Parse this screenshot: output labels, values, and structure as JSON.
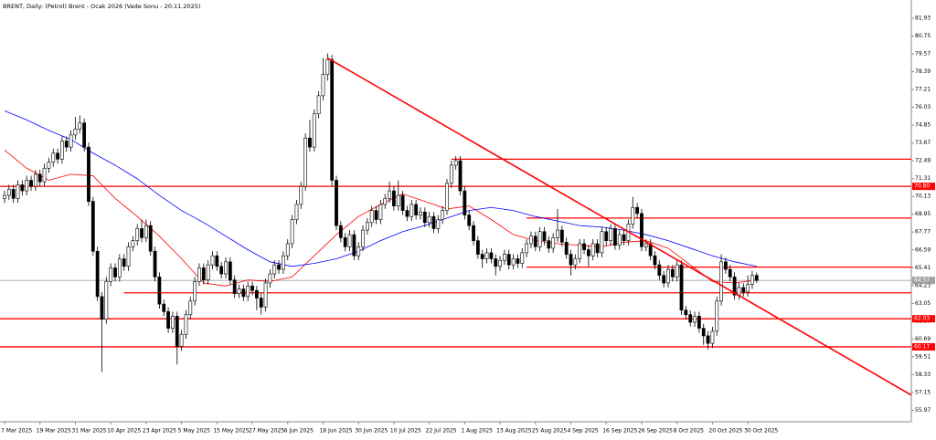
{
  "chart_data": {
    "type": "candlestick",
    "title": "BRENT, Daily:  (Petrol) Brent - Ocak 2026 (Vade Sonu - 20.11.2025)",
    "categories": [
      "7 Mar 2025",
      null,
      null,
      null,
      null,
      null,
      null,
      null,
      "19 Mar 2025",
      null,
      null,
      null,
      null,
      null,
      null,
      null,
      "31 Mar 2025",
      null,
      null,
      null,
      null,
      null,
      null,
      null,
      "10 Apr 2025",
      null,
      null,
      null,
      null,
      null,
      null,
      null,
      "23 Apr 2025",
      null,
      null,
      null,
      null,
      null,
      null,
      null,
      "5 May 2025",
      null,
      null,
      null,
      null,
      null,
      null,
      null,
      "15 May 2025",
      null,
      null,
      null,
      null,
      null,
      null,
      null,
      "27 May 2025",
      null,
      null,
      null,
      null,
      null,
      null,
      null,
      "6 Jun 2025",
      null,
      null,
      null,
      null,
      null,
      null,
      null,
      "18 Jun 2025",
      null,
      null,
      null,
      null,
      null,
      null,
      null,
      "30 Jun 2025",
      null,
      null,
      null,
      null,
      null,
      null,
      null,
      "10 Jul 2025",
      null,
      null,
      null,
      null,
      null,
      null,
      null,
      "22 Jul 2025",
      null,
      null,
      null,
      null,
      null,
      null,
      null,
      "1 Aug 2025",
      null,
      null,
      null,
      null,
      null,
      null,
      null,
      "13 Aug 2025",
      null,
      null,
      null,
      null,
      null,
      null,
      null,
      "25 Aug 2025",
      null,
      null,
      null,
      null,
      null,
      null,
      null,
      "4 Sep 2025",
      null,
      null,
      null,
      null,
      null,
      null,
      null,
      "16 Sep 2025",
      null,
      null,
      null,
      null,
      null,
      null,
      null,
      "26 Sep 2025",
      null,
      null,
      null,
      null,
      null,
      null,
      null,
      "8 Oct 2025",
      null,
      null,
      null,
      null,
      null,
      null,
      null,
      "20 Oct 2025",
      null,
      null,
      null,
      null,
      null,
      null,
      null,
      "30 Oct 2025",
      null,
      null
    ],
    "ohlc": [
      [
        70.0,
        70.5,
        69.7,
        70.2
      ],
      [
        70.2,
        70.9,
        69.9,
        70.6
      ],
      [
        70.6,
        70.9,
        69.7,
        70.0
      ],
      [
        70.0,
        71.2,
        69.7,
        70.9
      ],
      [
        70.9,
        71.2,
        70.2,
        70.5
      ],
      [
        70.5,
        71.5,
        70.2,
        71.2
      ],
      [
        71.2,
        71.5,
        70.5,
        70.8
      ],
      [
        70.8,
        71.9,
        70.5,
        71.6
      ],
      [
        71.6,
        71.9,
        70.8,
        71.1
      ],
      [
        71.1,
        72.3,
        70.8,
        72.0
      ],
      [
        72.0,
        72.7,
        71.7,
        72.4
      ],
      [
        72.4,
        73.3,
        72.1,
        73.0
      ],
      [
        73.0,
        73.3,
        72.3,
        72.6
      ],
      [
        72.6,
        74.1,
        72.3,
        73.8
      ],
      [
        73.8,
        74.1,
        73.1,
        73.4
      ],
      [
        73.4,
        74.5,
        73.1,
        74.2
      ],
      [
        74.2,
        75.4,
        73.9,
        74.6
      ],
      [
        74.6,
        75.5,
        74.3,
        75.0
      ],
      [
        75.0,
        75.3,
        73.1,
        73.4
      ],
      [
        73.4,
        73.7,
        69.5,
        69.8
      ],
      [
        69.8,
        70.1,
        66.2,
        66.5
      ],
      [
        66.5,
        66.8,
        63.2,
        63.5
      ],
      [
        63.5,
        63.8,
        58.5,
        62.0
      ],
      [
        62.0,
        64.8,
        61.7,
        64.5
      ],
      [
        64.5,
        65.7,
        64.2,
        65.4
      ],
      [
        65.4,
        65.7,
        64.5,
        64.8
      ],
      [
        64.8,
        66.3,
        64.5,
        66.0
      ],
      [
        66.0,
        66.3,
        65.2,
        65.5
      ],
      [
        65.5,
        67.1,
        65.2,
        66.8
      ],
      [
        66.8,
        67.5,
        66.5,
        67.2
      ],
      [
        67.2,
        68.3,
        66.9,
        68.0
      ],
      [
        68.0,
        68.6,
        67.1,
        67.4
      ],
      [
        67.4,
        68.6,
        67.1,
        68.2
      ],
      [
        68.2,
        68.5,
        66.2,
        66.5
      ],
      [
        66.5,
        66.8,
        64.5,
        64.8
      ],
      [
        64.8,
        65.1,
        62.7,
        63.0
      ],
      [
        63.0,
        63.3,
        62.2,
        62.5
      ],
      [
        62.5,
        62.8,
        61.1,
        61.4
      ],
      [
        61.4,
        62.5,
        61.1,
        62.2
      ],
      [
        62.2,
        62.5,
        59.0,
        60.2
      ],
      [
        60.2,
        61.3,
        59.9,
        61.0
      ],
      [
        61.0,
        62.6,
        60.7,
        62.3
      ],
      [
        62.3,
        63.5,
        62.0,
        63.2
      ],
      [
        63.2,
        64.8,
        62.9,
        64.5
      ],
      [
        64.5,
        65.7,
        64.2,
        65.4
      ],
      [
        65.4,
        65.7,
        64.3,
        64.6
      ],
      [
        64.6,
        65.9,
        64.3,
        65.6
      ],
      [
        65.6,
        66.5,
        65.3,
        66.2
      ],
      [
        66.2,
        66.5,
        65.2,
        65.5
      ],
      [
        65.5,
        65.8,
        64.7,
        65.0
      ],
      [
        65.0,
        66.1,
        64.7,
        65.8
      ],
      [
        65.8,
        66.1,
        64.3,
        64.6
      ],
      [
        64.6,
        64.9,
        63.4,
        63.7
      ],
      [
        63.7,
        64.3,
        63.4,
        64.0
      ],
      [
        64.0,
        64.3,
        63.2,
        63.5
      ],
      [
        63.5,
        64.5,
        63.2,
        64.2
      ],
      [
        64.2,
        64.5,
        63.6,
        63.9
      ],
      [
        63.9,
        64.2,
        62.6,
        63.4
      ],
      [
        63.4,
        63.7,
        62.3,
        62.8
      ],
      [
        62.8,
        64.7,
        62.5,
        64.4
      ],
      [
        64.4,
        65.3,
        64.1,
        65.0
      ],
      [
        65.0,
        65.9,
        64.7,
        65.6
      ],
      [
        65.6,
        65.9,
        65.0,
        65.3
      ],
      [
        65.3,
        66.5,
        65.0,
        66.2
      ],
      [
        66.2,
        67.3,
        65.9,
        67.0
      ],
      [
        67.0,
        68.9,
        66.7,
        68.6
      ],
      [
        68.6,
        69.9,
        68.3,
        69.6
      ],
      [
        69.6,
        71.1,
        69.3,
        70.8
      ],
      [
        70.8,
        74.3,
        70.5,
        74.0
      ],
      [
        74.0,
        75.2,
        73.1,
        73.4
      ],
      [
        73.4,
        75.9,
        73.1,
        75.6
      ],
      [
        75.6,
        77.1,
        75.3,
        76.8
      ],
      [
        76.8,
        79.3,
        76.5,
        78.2
      ],
      [
        78.2,
        79.6,
        77.8,
        79.2
      ],
      [
        79.2,
        79.5,
        70.8,
        71.2
      ],
      [
        71.2,
        71.5,
        67.9,
        68.2
      ],
      [
        68.2,
        68.5,
        67.1,
        67.4
      ],
      [
        67.4,
        67.7,
        66.5,
        66.8
      ],
      [
        66.8,
        67.9,
        66.5,
        67.6
      ],
      [
        67.6,
        67.9,
        65.9,
        66.2
      ],
      [
        66.2,
        67.1,
        65.9,
        66.8
      ],
      [
        66.8,
        68.2,
        66.5,
        67.9
      ],
      [
        67.9,
        68.7,
        67.6,
        68.4
      ],
      [
        68.4,
        69.5,
        68.1,
        69.2
      ],
      [
        69.2,
        69.5,
        68.3,
        68.6
      ],
      [
        68.6,
        69.9,
        68.3,
        69.6
      ],
      [
        69.6,
        70.3,
        69.3,
        70.0
      ],
      [
        70.0,
        71.1,
        69.7,
        70.5
      ],
      [
        70.5,
        70.8,
        69.2,
        69.5
      ],
      [
        69.5,
        71.2,
        69.2,
        70.2
      ],
      [
        70.2,
        70.5,
        68.9,
        69.2
      ],
      [
        69.2,
        69.5,
        68.5,
        68.8
      ],
      [
        68.8,
        69.9,
        68.5,
        69.6
      ],
      [
        69.6,
        69.9,
        68.6,
        68.9
      ],
      [
        68.9,
        69.4,
        68.6,
        69.1
      ],
      [
        69.1,
        69.4,
        68.1,
        68.4
      ],
      [
        68.4,
        69.1,
        68.1,
        68.8
      ],
      [
        68.8,
        69.1,
        67.7,
        68.0
      ],
      [
        68.0,
        68.9,
        67.7,
        68.6
      ],
      [
        68.6,
        69.5,
        68.3,
        69.2
      ],
      [
        69.2,
        71.3,
        68.9,
        71.0
      ],
      [
        71.0,
        72.5,
        70.7,
        72.2
      ],
      [
        72.2,
        72.8,
        71.9,
        72.5
      ],
      [
        72.5,
        72.8,
        70.2,
        70.5
      ],
      [
        70.5,
        70.8,
        68.6,
        68.9
      ],
      [
        68.9,
        69.2,
        67.9,
        68.2
      ],
      [
        68.2,
        68.5,
        66.9,
        67.2
      ],
      [
        67.2,
        67.5,
        66.0,
        66.3
      ],
      [
        66.3,
        66.6,
        65.4,
        66.0
      ],
      [
        66.0,
        66.7,
        65.7,
        66.4
      ],
      [
        66.4,
        66.7,
        65.7,
        66.0
      ],
      [
        66.0,
        66.3,
        64.9,
        65.5
      ],
      [
        65.5,
        66.2,
        65.2,
        65.9
      ],
      [
        65.9,
        66.6,
        65.6,
        66.3
      ],
      [
        66.3,
        66.6,
        65.3,
        65.6
      ],
      [
        65.6,
        66.3,
        65.3,
        66.0
      ],
      [
        66.0,
        66.3,
        65.4,
        65.7
      ],
      [
        65.7,
        66.7,
        65.4,
        66.4
      ],
      [
        66.4,
        67.3,
        66.1,
        67.0
      ],
      [
        67.0,
        67.8,
        66.7,
        67.5
      ],
      [
        67.5,
        67.8,
        66.5,
        66.8
      ],
      [
        66.8,
        68.1,
        66.5,
        67.8
      ],
      [
        67.8,
        68.1,
        66.9,
        67.2
      ],
      [
        67.2,
        67.5,
        66.4,
        66.7
      ],
      [
        66.7,
        67.7,
        66.4,
        67.4
      ],
      [
        67.4,
        69.3,
        67.1,
        67.9
      ],
      [
        67.9,
        68.2,
        66.8,
        67.1
      ],
      [
        67.1,
        67.4,
        66.0,
        66.3
      ],
      [
        66.3,
        66.6,
        64.9,
        65.6
      ],
      [
        65.6,
        66.3,
        65.3,
        66.0
      ],
      [
        66.0,
        67.3,
        65.7,
        67.0
      ],
      [
        67.0,
        67.3,
        66.3,
        66.6
      ],
      [
        66.6,
        66.9,
        65.5,
        66.2
      ],
      [
        66.2,
        67.3,
        65.9,
        67.0
      ],
      [
        67.0,
        67.3,
        66.1,
        66.4
      ],
      [
        66.4,
        68.1,
        66.1,
        67.8
      ],
      [
        67.8,
        68.1,
        66.9,
        67.2
      ],
      [
        67.2,
        68.3,
        66.9,
        68.0
      ],
      [
        68.0,
        68.3,
        66.6,
        66.9
      ],
      [
        66.9,
        67.9,
        66.6,
        67.6
      ],
      [
        67.6,
        67.9,
        66.9,
        67.2
      ],
      [
        67.2,
        68.6,
        66.9,
        68.3
      ],
      [
        68.3,
        70.1,
        68.0,
        69.4
      ],
      [
        69.4,
        69.7,
        68.7,
        69.0
      ],
      [
        69.0,
        69.3,
        66.5,
        66.8
      ],
      [
        66.8,
        67.3,
        66.5,
        67.0
      ],
      [
        67.0,
        67.3,
        65.9,
        66.2
      ],
      [
        66.2,
        66.5,
        65.3,
        65.6
      ],
      [
        65.6,
        65.9,
        64.6,
        64.9
      ],
      [
        64.9,
        65.2,
        64.1,
        64.4
      ],
      [
        64.4,
        65.6,
        64.1,
        65.3
      ],
      [
        65.3,
        65.6,
        64.5,
        64.8
      ],
      [
        64.8,
        65.9,
        64.5,
        65.6
      ],
      [
        65.6,
        65.9,
        62.3,
        62.6
      ],
      [
        62.6,
        62.9,
        62.0,
        62.3
      ],
      [
        62.3,
        62.6,
        61.5,
        61.8
      ],
      [
        61.8,
        62.5,
        61.5,
        62.2
      ],
      [
        62.2,
        62.5,
        61.1,
        61.4
      ],
      [
        61.4,
        61.7,
        60.3,
        60.9
      ],
      [
        60.9,
        61.2,
        60.0,
        60.4
      ],
      [
        60.4,
        61.5,
        60.1,
        61.2
      ],
      [
        61.2,
        63.5,
        60.9,
        63.2
      ],
      [
        63.2,
        66.3,
        62.9,
        65.8
      ],
      [
        65.8,
        66.1,
        65.0,
        65.3
      ],
      [
        65.3,
        65.6,
        64.5,
        64.8
      ],
      [
        64.8,
        65.1,
        63.3,
        63.6
      ],
      [
        63.6,
        64.4,
        63.3,
        64.1
      ],
      [
        64.1,
        64.4,
        63.5,
        63.8
      ],
      [
        63.8,
        64.9,
        63.5,
        64.3
      ],
      [
        64.3,
        65.2,
        64.0,
        64.9
      ],
      [
        64.9,
        65.1,
        64.4,
        64.57
      ]
    ],
    "up_color": "#ffffff",
    "down_color": "#000000",
    "moving_averages": [
      {
        "color": "#ff0000",
        "x": [
          0,
          5,
          10,
          15,
          20,
          25,
          30,
          35,
          40,
          45,
          50,
          55,
          60,
          65,
          70,
          75,
          80,
          85,
          90,
          95,
          100,
          105,
          110,
          115,
          120,
          125,
          130,
          135,
          140,
          145,
          150,
          155,
          160,
          165,
          170
        ],
        "values": [
          73.2,
          72.0,
          71.2,
          71.6,
          71.5,
          70.0,
          68.8,
          67.5,
          66.0,
          64.4,
          64.2,
          64.6,
          64.5,
          64.8,
          66.2,
          67.6,
          68.8,
          69.6,
          70.3,
          69.8,
          69.3,
          69.5,
          68.6,
          67.6,
          67.2,
          67.0,
          66.9,
          66.8,
          67.1,
          67.2,
          66.7,
          65.6,
          64.5,
          64.4,
          64.6
        ]
      },
      {
        "color": "#0000ff",
        "x": [
          0,
          5,
          10,
          15,
          20,
          25,
          30,
          35,
          40,
          45,
          50,
          55,
          60,
          65,
          70,
          75,
          80,
          85,
          90,
          95,
          100,
          105,
          110,
          115,
          120,
          125,
          130,
          135,
          140,
          145,
          150,
          155,
          160,
          165,
          170
        ],
        "values": [
          75.8,
          75.2,
          74.5,
          73.9,
          73.0,
          72.2,
          71.3,
          70.2,
          69.2,
          68.4,
          67.5,
          66.6,
          65.8,
          65.5,
          65.7,
          66.0,
          66.5,
          67.2,
          67.8,
          68.2,
          68.7,
          69.2,
          69.4,
          69.2,
          68.8,
          68.5,
          68.2,
          68.1,
          67.9,
          67.6,
          67.2,
          66.7,
          66.2,
          65.8,
          65.5
        ]
      }
    ],
    "trendline": {
      "color": "#ff0000",
      "x": [
        73,
        206
      ],
      "values": [
        79.3,
        56.8
      ]
    },
    "levels": [
      {
        "value": 72.6,
        "from": 101
      },
      {
        "value": {
          "value": 70.8,
          "label": "70.80"
        },
        "tagged": true
      },
      {
        "value": 68.7,
        "from": 118
      },
      {
        "value": 65.45,
        "from": 118
      },
      {
        "value": 63.75,
        "from": 27
      },
      {
        "value": 62.03,
        "tagged": true
      },
      {
        "value": 60.17,
        "tagged": true
      }
    ],
    "level_color": "#ff0000",
    "current": {
      "value": 64.57,
      "color": "#a0a0a0"
    },
    "ylim": [
      55.21,
      83.14
    ],
    "yticks": [
      81.93,
      80.75,
      79.57,
      78.39,
      77.21,
      76.03,
      74.85,
      73.67,
      72.49,
      71.31,
      70.13,
      68.95,
      67.77,
      66.59,
      65.41,
      64.23,
      63.05,
      61.87,
      60.69,
      59.51,
      58.33,
      57.15,
      55.97
    ]
  }
}
